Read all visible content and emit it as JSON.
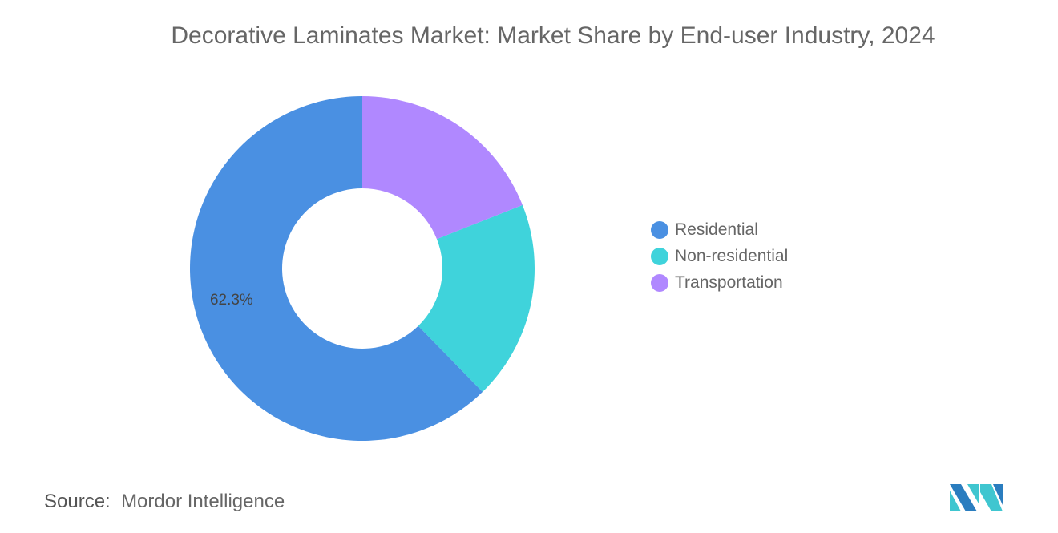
{
  "chart_data": {
    "type": "pie",
    "variant": "donut",
    "title": "Decorative Laminates Market: Market Share by End-user Industry, 2024",
    "categories": [
      "Residential",
      "Non-residential",
      "Transportation"
    ],
    "values": [
      62.3,
      18.7,
      19.0
    ],
    "colors": [
      "#4a90e2",
      "#3fd3db",
      "#b088ff"
    ],
    "data_labels": [
      "62.3%",
      "",
      ""
    ],
    "legend_position": "right"
  },
  "source": {
    "label": "Source:",
    "value": "Mordor Intelligence"
  }
}
